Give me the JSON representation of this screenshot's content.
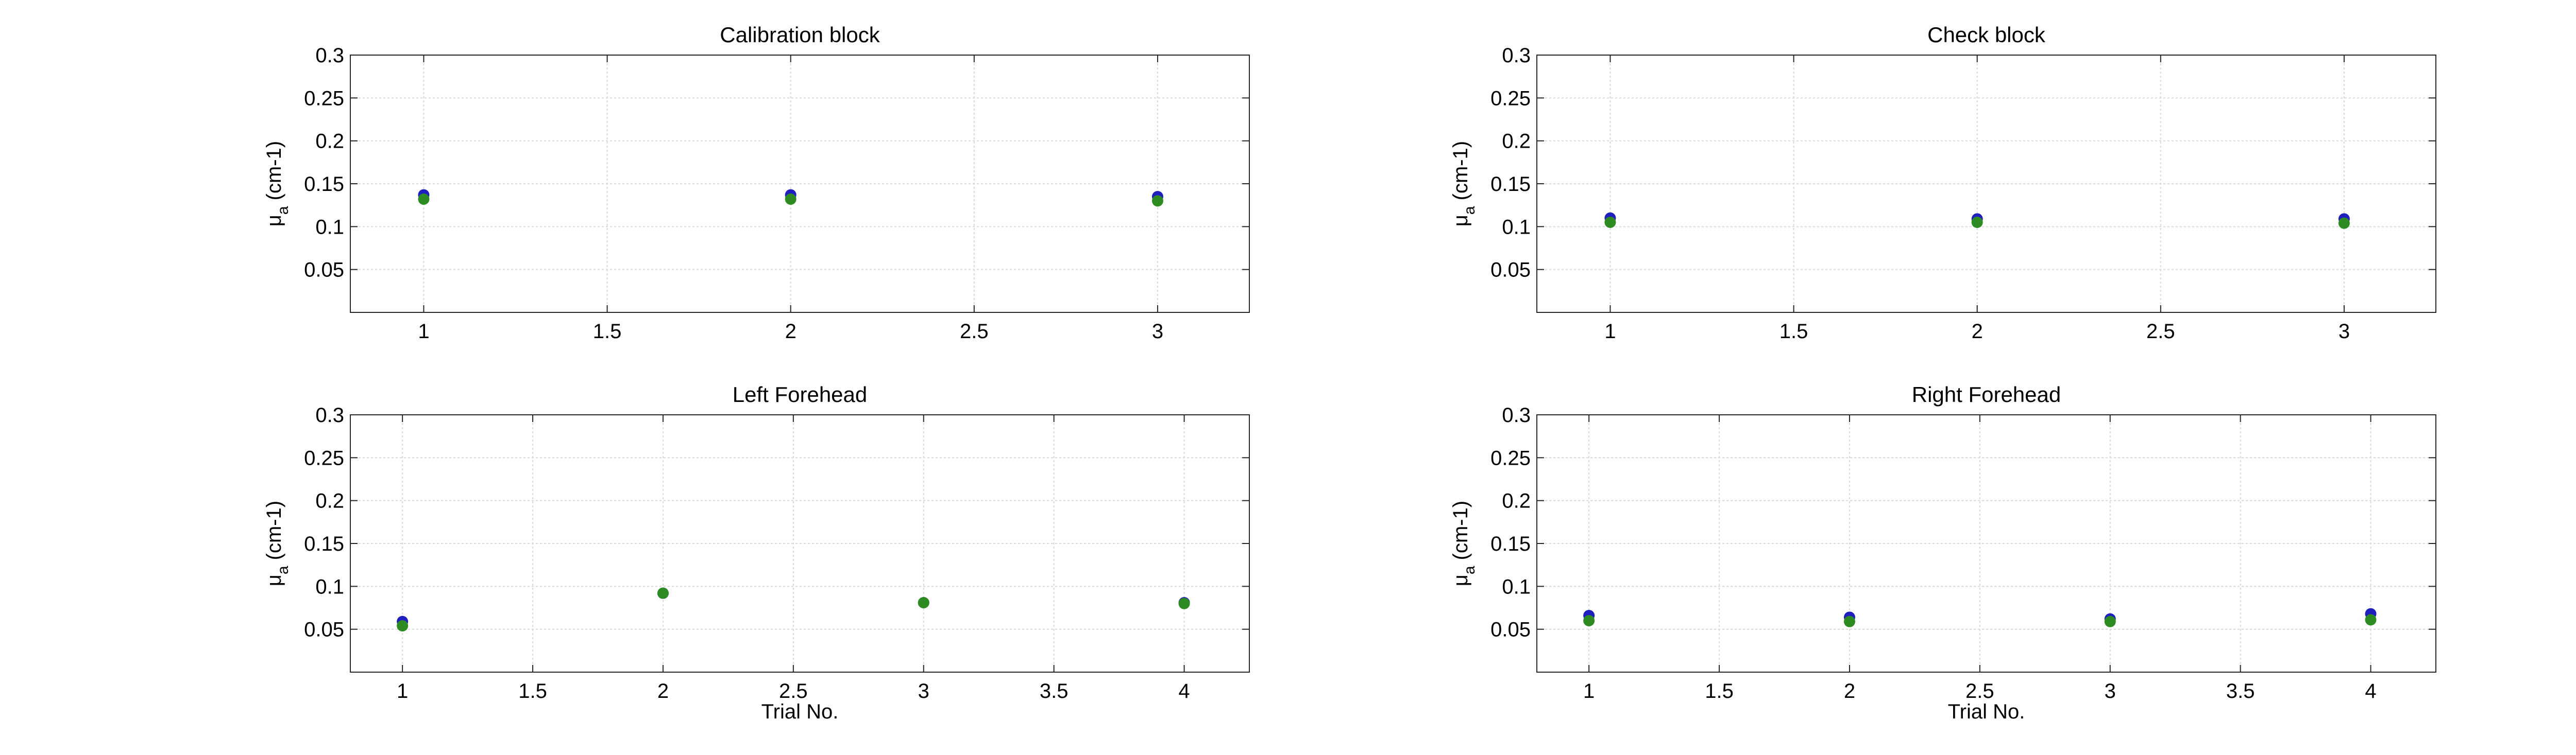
{
  "figure": {
    "background": "#ffffff",
    "axes_color": "#262626",
    "grid_color": "#d9d9d9"
  },
  "chart_data": [
    {
      "type": "scatter",
      "title": "Calibration block",
      "xlabel": "",
      "ylabel": "μ",
      "ylabel_sub": "a",
      "ylabel_unit": "(cm-1)",
      "xlim": [
        0.8,
        3.25
      ],
      "ylim": [
        0,
        0.3
      ],
      "xticks": [
        1,
        1.5,
        2,
        2.5,
        3
      ],
      "xtick_labels": [
        "1",
        "1.5",
        "2",
        "2.5",
        "3"
      ],
      "yticks": [
        0.05,
        0.1,
        0.15,
        0.2,
        0.25,
        0.3
      ],
      "ytick_labels": [
        "0.05",
        "0.1",
        "0.15",
        "0.2",
        "0.25",
        "0.3"
      ],
      "grid": true,
      "series": [
        {
          "color": "#1f1fbf",
          "x": [
            1,
            2,
            3
          ],
          "y": [
            0.137,
            0.137,
            0.135
          ]
        },
        {
          "color": "#2e8b22",
          "x": [
            1,
            2,
            3
          ],
          "y": [
            0.132,
            0.132,
            0.13
          ]
        }
      ]
    },
    {
      "type": "scatter",
      "title": "Check block",
      "xlabel": "",
      "ylabel": "μ",
      "ylabel_sub": "a",
      "ylabel_unit": "(cm-1)",
      "xlim": [
        0.8,
        3.25
      ],
      "ylim": [
        0,
        0.3
      ],
      "xticks": [
        1,
        1.5,
        2,
        2.5,
        3
      ],
      "xtick_labels": [
        "1",
        "1.5",
        "2",
        "2.5",
        "3"
      ],
      "yticks": [
        0.05,
        0.1,
        0.15,
        0.2,
        0.25,
        0.3
      ],
      "ytick_labels": [
        "0.05",
        "0.1",
        "0.15",
        "0.2",
        "0.25",
        "0.3"
      ],
      "grid": true,
      "series": [
        {
          "color": "#1f1fbf",
          "x": [
            1,
            2,
            3
          ],
          "y": [
            0.11,
            0.109,
            0.109
          ]
        },
        {
          "color": "#2e8b22",
          "x": [
            1,
            2,
            3
          ],
          "y": [
            0.105,
            0.105,
            0.104
          ]
        }
      ]
    },
    {
      "type": "scatter",
      "title": "Left Forehead",
      "xlabel": "Trial No.",
      "ylabel": "μ",
      "ylabel_sub": "a",
      "ylabel_unit": "(cm-1)",
      "xlim": [
        0.8,
        4.25
      ],
      "ylim": [
        0,
        0.3
      ],
      "xticks": [
        1,
        1.5,
        2,
        2.5,
        3,
        3.5,
        4
      ],
      "xtick_labels": [
        "1",
        "1.5",
        "2",
        "2.5",
        "3",
        "3.5",
        "4"
      ],
      "yticks": [
        0.05,
        0.1,
        0.15,
        0.2,
        0.25,
        0.3
      ],
      "ytick_labels": [
        "0.05",
        "0.1",
        "0.15",
        "0.2",
        "0.25",
        "0.3"
      ],
      "grid": true,
      "series": [
        {
          "color": "#1f1fbf",
          "x": [
            1,
            2,
            3,
            4
          ],
          "y": [
            0.059,
            0.092,
            0.081,
            0.081
          ]
        },
        {
          "color": "#2e8b22",
          "x": [
            1,
            2,
            3,
            4
          ],
          "y": [
            0.054,
            0.092,
            0.081,
            0.08
          ]
        }
      ]
    },
    {
      "type": "scatter",
      "title": "Right Forehead",
      "xlabel": "Trial No.",
      "ylabel": "μ",
      "ylabel_sub": "a",
      "ylabel_unit": "(cm-1)",
      "xlim": [
        0.8,
        4.25
      ],
      "ylim": [
        0,
        0.3
      ],
      "xticks": [
        1,
        1.5,
        2,
        2.5,
        3,
        3.5,
        4
      ],
      "xtick_labels": [
        "1",
        "1.5",
        "2",
        "2.5",
        "3",
        "3.5",
        "4"
      ],
      "yticks": [
        0.05,
        0.1,
        0.15,
        0.2,
        0.25,
        0.3
      ],
      "ytick_labels": [
        "0.05",
        "0.1",
        "0.15",
        "0.2",
        "0.25",
        "0.3"
      ],
      "grid": true,
      "series": [
        {
          "color": "#1f1fbf",
          "x": [
            1,
            2,
            3,
            4
          ],
          "y": [
            0.066,
            0.064,
            0.062,
            0.068
          ]
        },
        {
          "color": "#2e8b22",
          "x": [
            1,
            2,
            3,
            4
          ],
          "y": [
            0.06,
            0.059,
            0.059,
            0.061
          ]
        }
      ]
    }
  ]
}
